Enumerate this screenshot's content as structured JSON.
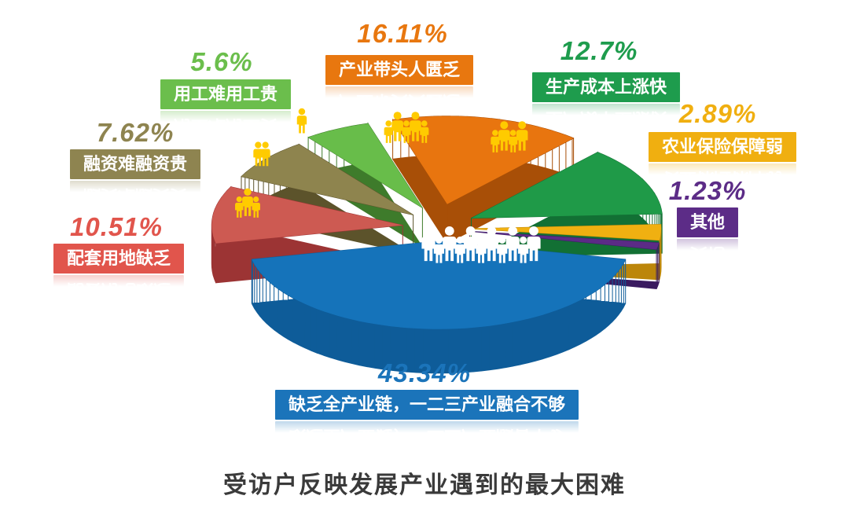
{
  "title": "受访户反映发展产业遇到的最大困难",
  "chart_data": {
    "type": "pie",
    "style": "3d-exploded",
    "title": "受访户反映发展产业遇到的最大困难",
    "unit": "%",
    "angle_order": "clockwise",
    "slices": [
      {
        "id": "chain",
        "label": "缺乏全产业链，一二三产业融合不够",
        "value": 43.34,
        "value_text": "43.34%",
        "people_count": 11,
        "people_color": "#ffffff",
        "colors": {
          "accent": "#1b74ba",
          "top": "#1573ba",
          "side": "#0e5c99"
        }
      },
      {
        "id": "land",
        "label": "配套用地缺乏",
        "value": 10.51,
        "value_text": "10.51%",
        "people_count": 3,
        "people_color": "#ffcb00",
        "colors": {
          "accent": "#e1554c",
          "top": "#cd5a52",
          "side": "#9c3434"
        }
      },
      {
        "id": "financing",
        "label": "融资难融资贵",
        "value": 7.62,
        "value_text": "7.62%",
        "people_count": 2,
        "people_color": "#ffcb00",
        "colors": {
          "accent": "#8e8450",
          "top": "#8e844e",
          "side": "#5c532b"
        }
      },
      {
        "id": "labor",
        "label": "用工难用工贵",
        "value": 5.6,
        "value_text": "5.6%",
        "people_count": 1,
        "people_color": "#ffcb00",
        "colors": {
          "accent": "#6bbe4c",
          "top": "#68bd4a",
          "side": "#3e7b2b"
        }
      },
      {
        "id": "leader",
        "label": "产业带头人匮乏",
        "value": 16.11,
        "value_text": "16.11%",
        "people_count": 5,
        "people_color": "#ffcb00",
        "colors": {
          "accent": "#e8770f",
          "top": "#e8750f",
          "side": "#a84f07"
        }
      },
      {
        "id": "cost",
        "label": "生产成本上涨快",
        "value": 12.7,
        "value_text": "12.7%",
        "people_count": 4,
        "people_color": "#ffcb00",
        "colors": {
          "accent": "#1e9c4d",
          "top": "#1f9a48",
          "side": "#127034"
        }
      },
      {
        "id": "insurance",
        "label": "农业保险保障弱",
        "value": 2.89,
        "value_text": "2.89%",
        "people_count": 0,
        "people_color": "#ffcb00",
        "colors": {
          "accent": "#f0af10",
          "top": "#f0b011",
          "side": "#bc860a"
        }
      },
      {
        "id": "other",
        "label": "其他",
        "value": 1.23,
        "value_text": "1.23%",
        "people_count": 0,
        "people_color": "#ffcb00",
        "colors": {
          "accent": "#5c2c87",
          "top": "#5b2b86",
          "side": "#3a1b60"
        }
      }
    ]
  }
}
